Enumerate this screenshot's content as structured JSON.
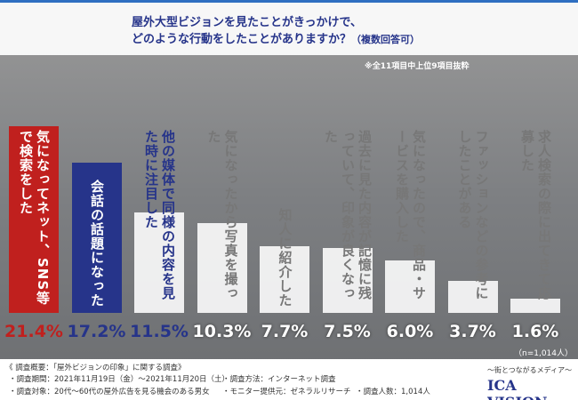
{
  "chart_data": {
    "type": "bar",
    "title": [
      "屋外大型ビジョンを見たことがきっかけで、",
      "どのような行動をしたことがありますか？"
    ],
    "subtitle": "（複数回答可）",
    "note": "※全11項目中上位9項目抜粋",
    "sample": "（n=1,014人）",
    "categories": [
      "気になってネット、SNS等で検索をした",
      "会話の話題になった",
      "他の媒体で同様の内容を見た時に注目した",
      "気になったから写真を撮った",
      "知人に紹介した",
      "過去に見た内容が記憶に残っていて、印象が良くなった",
      "気になったので、商品・サービスを購入した",
      "ファッションなどの参考にしたことがある",
      "求人検索の際に出てきて応募した"
    ],
    "values": [
      21.4,
      17.2,
      11.5,
      10.3,
      7.7,
      7.5,
      6.0,
      3.7,
      1.6
    ],
    "value_labels": [
      "21.4%",
      "17.2%",
      "11.5%",
      "10.3%",
      "7.7%",
      "7.5%",
      "6.0%",
      "3.7%",
      "1.6%"
    ],
    "colors": [
      "#c0201e",
      "#26348a",
      "#ffffff",
      "#ffffff",
      "#ffffff",
      "#ffffff",
      "#ffffff",
      "#ffffff",
      "#ffffff"
    ],
    "text_colors": [
      "#ffffff",
      "#ffffff",
      "#26348a",
      "#777777",
      "#777777",
      "#777777",
      "#777777",
      "#777777",
      "#777777"
    ],
    "label_colors": [
      "#c0201e",
      "#26348a",
      "#26348a",
      "#ffffff",
      "#ffffff",
      "#ffffff",
      "#ffffff",
      "#ffffff",
      "#ffffff"
    ]
  },
  "footer": {
    "heading": "《 調査概要：「屋外ビジョンの印象」に関する調査》",
    "items": [
      "調査期間：2021年11月19日（金）～2021年11月20日（土）",
      "調査方法：インターネット調査",
      "調査対象：20代～60代の屋外広告を見る機会のある男女",
      "モニター提供元：ゼネラルリサーチ",
      "調査人数：1,014人"
    ],
    "tagline": "～街とつながるメディア～",
    "brand": "ICA VISION"
  }
}
